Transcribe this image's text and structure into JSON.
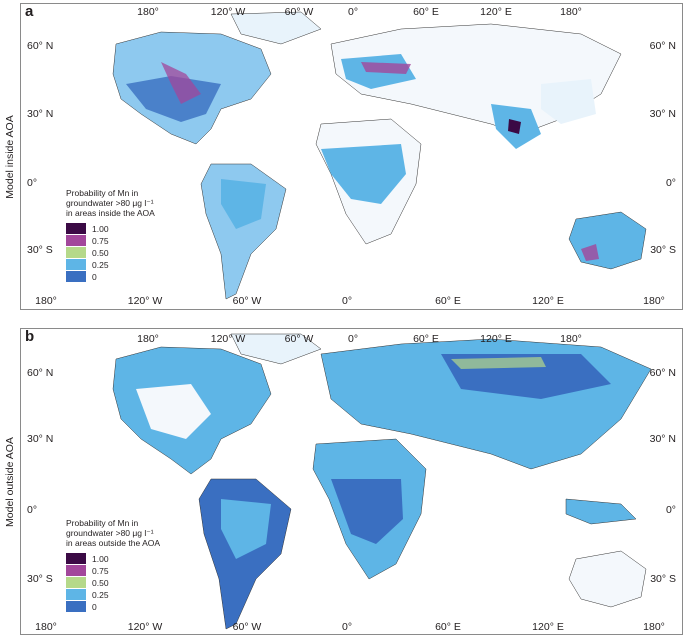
{
  "panels": [
    {
      "letter": "a",
      "side_label": "Model inside AOA",
      "top_lon_labels": [
        "180°",
        "120° W",
        "60° W",
        "0°",
        "60° E",
        "120° E",
        "180°"
      ],
      "bottom_lon_labels": [
        "180°",
        "120° W",
        "60° W",
        "0°",
        "60° E",
        "120° E",
        "180°"
      ],
      "lat_labels": [
        "60° N",
        "30° N",
        "0°",
        "30° S"
      ],
      "legend": {
        "title_lines": [
          "Probability of Mn in",
          "groundwater >80 μg l⁻¹",
          "in areas inside the AOA"
        ],
        "items": [
          {
            "label": "1.00",
            "color": "#3b0a45"
          },
          {
            "label": "0.75",
            "color": "#a2479b"
          },
          {
            "label": "0.50",
            "color": "#b5d98a"
          },
          {
            "label": "0.25",
            "color": "#5eb5e6"
          },
          {
            "label": "0",
            "color": "#3a6fc1"
          }
        ]
      }
    },
    {
      "letter": "b",
      "side_label": "Model outside AOA",
      "top_lon_labels": [
        "180°",
        "120° W",
        "60° W",
        "0°",
        "60° E",
        "120° E",
        "180°"
      ],
      "bottom_lon_labels": [
        "180°",
        "120° W",
        "60° W",
        "0°",
        "60° E",
        "120° E",
        "180°"
      ],
      "lat_labels": [
        "60° N",
        "30° N",
        "0°",
        "30° S"
      ],
      "legend": {
        "title_lines": [
          "Probability of Mn in",
          "groundwater >80 μg l⁻¹",
          "in areas outside the AOA"
        ],
        "items": [
          {
            "label": "1.00",
            "color": "#3b0a45"
          },
          {
            "label": "0.75",
            "color": "#a2479b"
          },
          {
            "label": "0.50",
            "color": "#b5d98a"
          },
          {
            "label": "0.25",
            "color": "#5eb5e6"
          },
          {
            "label": "0",
            "color": "#3a6fc1"
          }
        ]
      }
    }
  ]
}
